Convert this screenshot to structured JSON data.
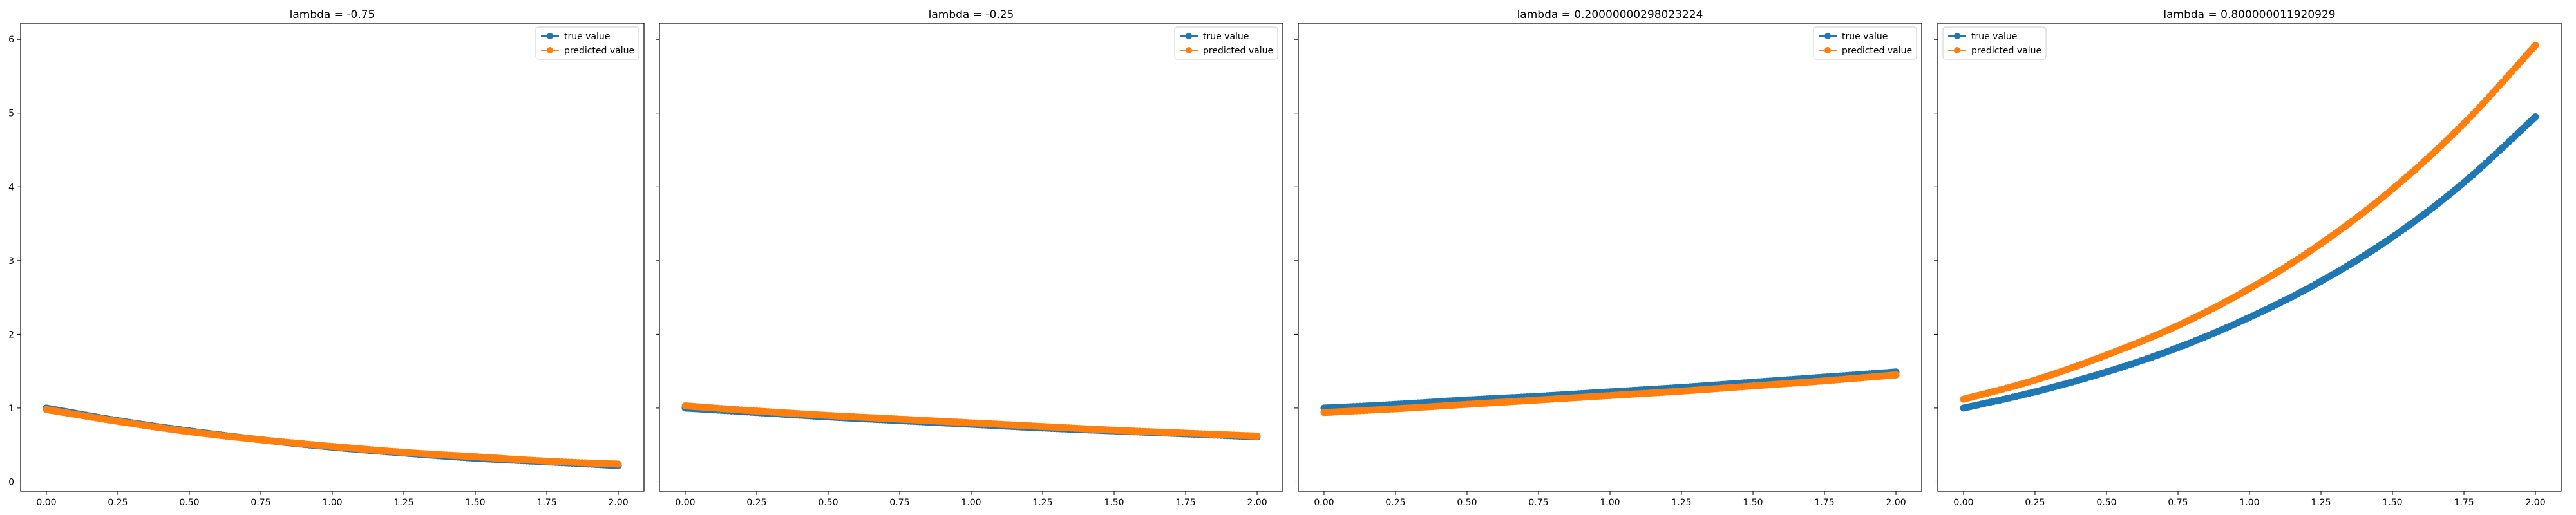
{
  "chart_data": [
    {
      "type": "line",
      "title": "lambda = -0.75",
      "xlim": [
        0,
        2
      ],
      "ylim": [
        0,
        6
      ],
      "x_ticks": [
        "0.00",
        "0.25",
        "0.50",
        "0.75",
        "1.00",
        "1.25",
        "1.50",
        "1.75",
        "2.00"
      ],
      "y_ticks": [
        "0",
        "1",
        "2",
        "3",
        "4",
        "5",
        "6"
      ],
      "y_tick_labels_visible": true,
      "legend": "top-right",
      "series": [
        {
          "name": "true value",
          "color": "#1f77b4",
          "x": [
            0,
            0.25,
            0.5,
            0.75,
            1,
            1.25,
            1.5,
            1.75,
            2
          ],
          "y": [
            1.0,
            0.83,
            0.69,
            0.57,
            0.47,
            0.39,
            0.32,
            0.27,
            0.22
          ]
        },
        {
          "name": "predicted value",
          "color": "#ff7f0e",
          "x": [
            0,
            0.25,
            0.5,
            0.75,
            1,
            1.25,
            1.5,
            1.75,
            2
          ],
          "y": [
            0.98,
            0.82,
            0.68,
            0.57,
            0.48,
            0.4,
            0.34,
            0.28,
            0.24
          ]
        }
      ]
    },
    {
      "type": "line",
      "title": "lambda = -0.25",
      "xlim": [
        0,
        2
      ],
      "ylim": [
        0,
        6
      ],
      "x_ticks": [
        "0.00",
        "0.25",
        "0.50",
        "0.75",
        "1.00",
        "1.25",
        "1.50",
        "1.75",
        "2.00"
      ],
      "y_ticks": [
        "0",
        "1",
        "2",
        "3",
        "4",
        "5",
        "6"
      ],
      "y_tick_labels_visible": false,
      "legend": "top-right",
      "series": [
        {
          "name": "true value",
          "color": "#1f77b4",
          "x": [
            0,
            0.25,
            0.5,
            0.75,
            1,
            1.25,
            1.5,
            1.75,
            2
          ],
          "y": [
            1.0,
            0.94,
            0.88,
            0.83,
            0.78,
            0.73,
            0.69,
            0.65,
            0.61
          ]
        },
        {
          "name": "predicted value",
          "color": "#ff7f0e",
          "x": [
            0,
            0.25,
            0.5,
            0.75,
            1,
            1.25,
            1.5,
            1.75,
            2
          ],
          "y": [
            1.03,
            0.96,
            0.9,
            0.85,
            0.8,
            0.75,
            0.7,
            0.66,
            0.62
          ]
        }
      ]
    },
    {
      "type": "line",
      "title": "lambda = 0.20000000298023224",
      "xlim": [
        0,
        2
      ],
      "ylim": [
        0,
        6
      ],
      "x_ticks": [
        "0.00",
        "0.25",
        "0.50",
        "0.75",
        "1.00",
        "1.25",
        "1.50",
        "1.75",
        "2.00"
      ],
      "y_ticks": [
        "0",
        "1",
        "2",
        "3",
        "4",
        "5",
        "6"
      ],
      "y_tick_labels_visible": false,
      "legend": "top-right",
      "series": [
        {
          "name": "true value",
          "color": "#1f77b4",
          "x": [
            0,
            0.25,
            0.5,
            0.75,
            1,
            1.25,
            1.5,
            1.75,
            2
          ],
          "y": [
            1.0,
            1.05,
            1.11,
            1.16,
            1.22,
            1.28,
            1.35,
            1.42,
            1.49
          ]
        },
        {
          "name": "predicted value",
          "color": "#ff7f0e",
          "x": [
            0,
            0.25,
            0.5,
            0.75,
            1,
            1.25,
            1.5,
            1.75,
            2
          ],
          "y": [
            0.94,
            0.99,
            1.05,
            1.11,
            1.17,
            1.23,
            1.3,
            1.37,
            1.45
          ]
        }
      ]
    },
    {
      "type": "line",
      "title": "lambda = 0.800000011920929",
      "xlim": [
        0,
        2
      ],
      "ylim": [
        0,
        6
      ],
      "x_ticks": [
        "0.00",
        "0.25",
        "0.50",
        "0.75",
        "1.00",
        "1.25",
        "1.50",
        "1.75",
        "2.00"
      ],
      "y_ticks": [
        "0",
        "1",
        "2",
        "3",
        "4",
        "5",
        "6"
      ],
      "y_tick_labels_visible": false,
      "legend": "top-left",
      "series": [
        {
          "name": "true value",
          "color": "#1f77b4",
          "x": [
            0,
            0.25,
            0.5,
            0.75,
            1,
            1.25,
            1.5,
            1.75,
            2
          ],
          "y": [
            1.0,
            1.22,
            1.49,
            1.82,
            2.23,
            2.72,
            3.32,
            4.06,
            4.95
          ]
        },
        {
          "name": "predicted value",
          "color": "#ff7f0e",
          "x": [
            0,
            0.25,
            0.5,
            0.75,
            1,
            1.25,
            1.5,
            1.75,
            2
          ],
          "y": [
            1.12,
            1.38,
            1.72,
            2.12,
            2.62,
            3.23,
            3.97,
            4.86,
            5.92
          ]
        }
      ]
    }
  ]
}
